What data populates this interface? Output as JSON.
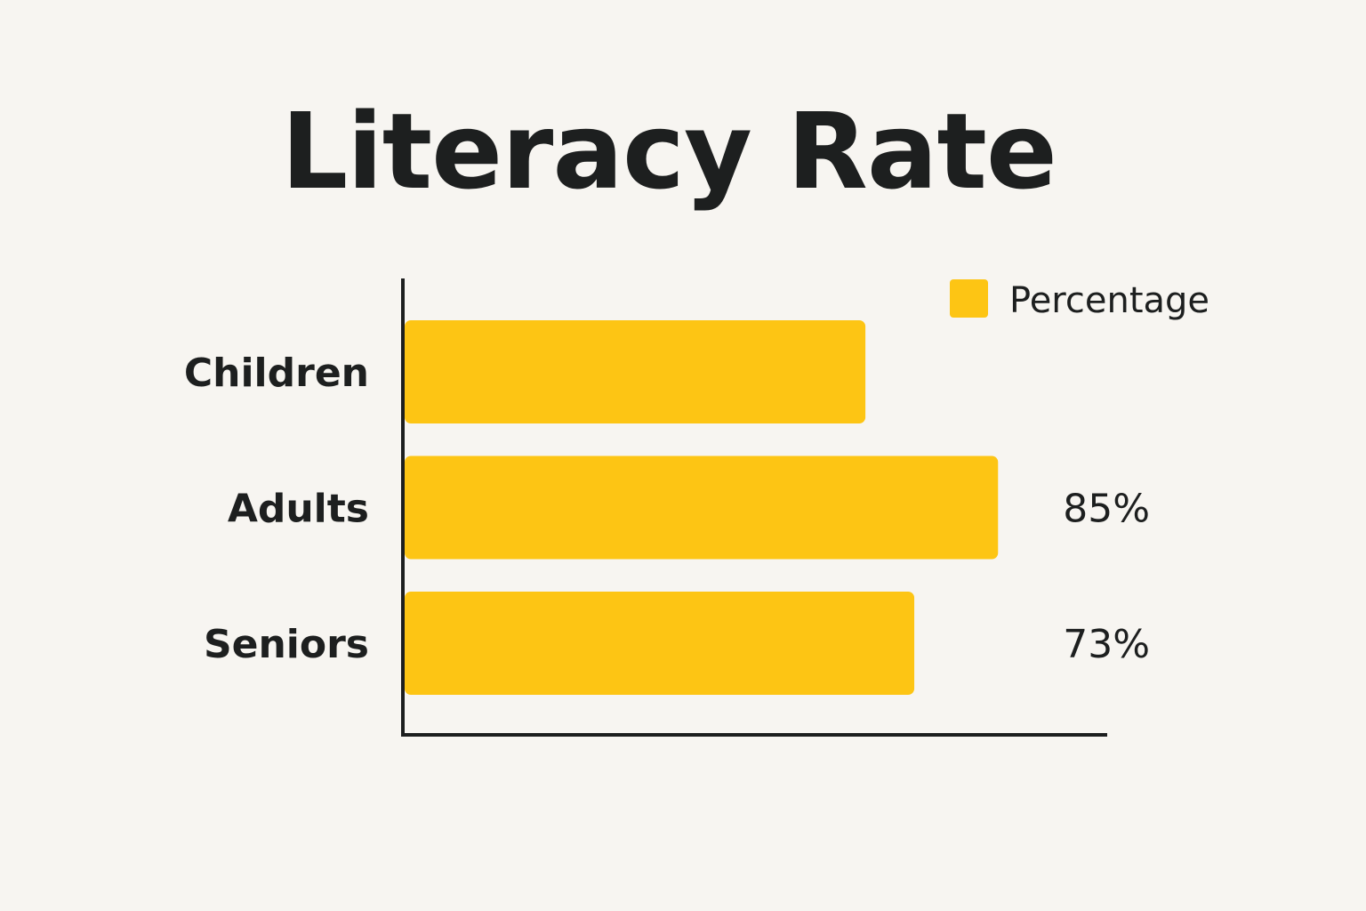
{
  "colors": {
    "background": "#f7f5f1",
    "bar": "#fdc514",
    "text": "#1d1f1f",
    "axis": "#1d1f1f"
  },
  "chart_data": {
    "type": "bar",
    "orientation": "horizontal",
    "title": "Literacy Rate",
    "xlabel": "",
    "ylabel": "",
    "xlim": [
      0,
      120
    ],
    "grid": false,
    "legend_position": "top-right",
    "categories": [
      "Children",
      "Adults",
      "Seniors"
    ],
    "series": [
      {
        "name": "Percentage",
        "values": [
          66,
          85,
          73
        ],
        "data_labels": [
          "",
          "85%",
          "73%"
        ]
      }
    ]
  }
}
